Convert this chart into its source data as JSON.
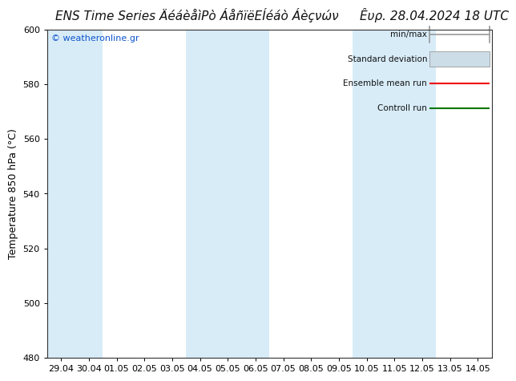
{
  "title_left": "ENS Time Series ÄéáèåìPò ÁåñïëEÍéáò Áèçνών",
  "title_right": "Êυρ. 28.04.2024 18 UTC",
  "ylabel": "Temperature 850 hPa (°C)",
  "ylim": [
    480,
    600
  ],
  "yticks": [
    480,
    500,
    520,
    540,
    560,
    580,
    600
  ],
  "x_labels": [
    "29.04",
    "30.04",
    "01.05",
    "02.05",
    "03.05",
    "04.05",
    "05.05",
    "06.05",
    "07.05",
    "08.05",
    "09.05",
    "10.05",
    "11.05",
    "12.05",
    "13.05",
    "14.05"
  ],
  "watermark": "© weatheronline.gr",
  "shade_ranges": [
    [
      0,
      1
    ],
    [
      5,
      7
    ],
    [
      11,
      13
    ]
  ],
  "shade_color": "#d8ecf8",
  "background_color": "#ffffff",
  "legend_labels": [
    "min/max",
    "Standard deviation",
    "Ensemble mean run",
    "Controll run"
  ],
  "legend_line_colors": [
    "#999999",
    "#bbbbbb",
    "#ee0000",
    "#007700"
  ],
  "title_fontsize": 11,
  "tick_fontsize": 8,
  "ylabel_fontsize": 9
}
